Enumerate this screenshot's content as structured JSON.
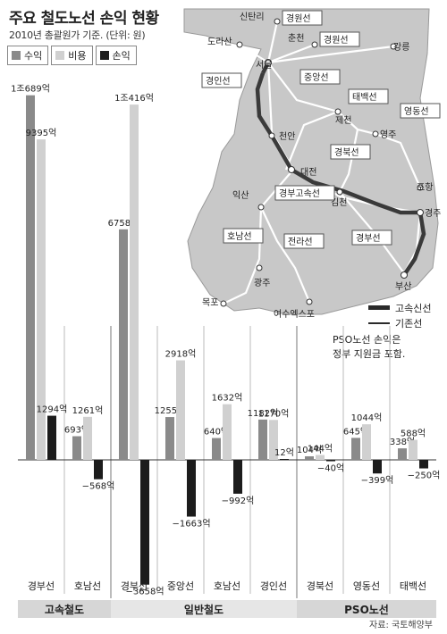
{
  "title": "주요 철도노선 손익 현황",
  "subtitle": "2010년 총괄원가 기준. (단위: 원)",
  "legend": [
    {
      "label": "수익",
      "color": "#8a8a8a"
    },
    {
      "label": "비용",
      "color": "#d0d0d0"
    },
    {
      "label": "손익",
      "color": "#1c1c1c"
    }
  ],
  "chart_data": {
    "type": "bar",
    "categories": [
      "경부선",
      "호남선",
      "경부선",
      "중앙선",
      "호남선",
      "경인선",
      "경북선",
      "영동선",
      "태백선"
    ],
    "groups": [
      {
        "label": "고속철도",
        "categories": [
          "경부선",
          "호남선"
        ]
      },
      {
        "label": "일반철도",
        "categories": [
          "경부선",
          "중앙선",
          "호남선",
          "경인선"
        ]
      },
      {
        "label": "PSO노선",
        "categories": [
          "경북선",
          "영동선",
          "태백선"
        ]
      }
    ],
    "series": [
      {
        "name": "수익",
        "values": [
          10689,
          693,
          6758,
          1255,
          640,
          1182,
          104,
          645,
          338
        ]
      },
      {
        "name": "비용",
        "values": [
          9395,
          1261,
          10416,
          2918,
          1632,
          1170,
          144,
          1044,
          588
        ]
      },
      {
        "name": "손익",
        "values": [
          1294,
          -568,
          -3658,
          -1663,
          -992,
          12,
          -40,
          -399,
          -250
        ]
      }
    ],
    "value_labels": [
      [
        "1조689억",
        "693억",
        "6758억",
        "1255억",
        "640억",
        "1182억",
        "104억",
        "645억",
        "338억"
      ],
      [
        "9395억",
        "1261억",
        "1조416억",
        "2918억",
        "1632억",
        "1170억",
        "144억",
        "1044억",
        "588억"
      ],
      [
        "1294억",
        "−568억",
        "−3658억",
        "−1663억",
        "−992억",
        "12억",
        "−40억",
        "−399억",
        "−250억"
      ]
    ]
  },
  "note": [
    "PSO노선 손익은",
    "정부 지원금 포함."
  ],
  "map": {
    "cities": [
      "신탄리",
      "도라산",
      "춘천",
      "서울",
      "강릉",
      "제천",
      "영주",
      "천안",
      "대전",
      "포항",
      "익산",
      "김천",
      "경주",
      "광주",
      "부산",
      "목포",
      "여수엑스포"
    ],
    "lines": [
      "경원선",
      "경원선",
      "경인선",
      "중앙선",
      "태백선",
      "영동선",
      "경북선",
      "경부고속선",
      "호남선",
      "전라선",
      "경부선"
    ],
    "legend": [
      "고속신선",
      "기존선"
    ]
  },
  "source": "자료: 국토해양부"
}
